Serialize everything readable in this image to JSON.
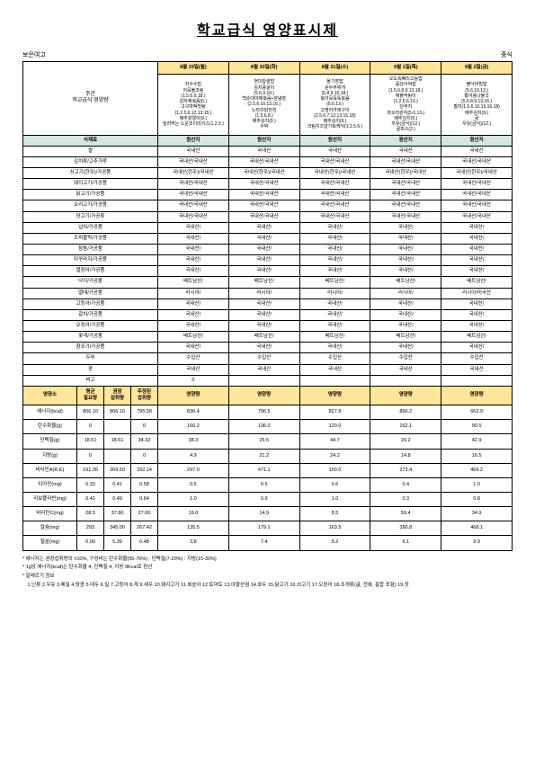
{
  "title": "학교급식 영양표시제",
  "header_left": "보은여고",
  "header_right": "중식",
  "week_label": "주간\n학교급식 영양량",
  "dates": [
    "8월 29일(월)",
    "8월 30일(화)",
    "8월 31일(수)",
    "9월 1일(목)",
    "9월 2일(금)"
  ],
  "menus": [
    "차수수밥\n어묵불조림\n(1.5.6.9.18.)\n감자채볶음(5.)\n고구마떡맛탕\n(1.2.5.6.12.13.15.)\n배추겉절이(9.)\n밀러먹는 노운조이미이스(1.2.5.)",
    "현미찹쌀밥\n김치콩굴이\n(5.6.9.10.)\n백순대야채볶음+양념장(2.5.6.10.13.16.)\n노타리닭전전\n(1.5.6.8.)\n배추김치(9.)\n수박",
    "올기장밥\n순두부찌개\n(5.8.9.10.18.)\n볶이묵뚝뚝볶음\n(5.6.13.)\n고명어카레구이(2.5.6.7.12.13.16.18)\n배추김치(9.)\n크림치즈알가토케익(1.2.5.6.)",
    "오도독뼈리고등밥\n꼼강어덕밥\n(1.5.6.8.9.13.18.)\n애플막탕이\n(1.2.5.6.13.)\n단무지\n파오리관자(5.6.13.)\n배추김치(9.)\n우유(금식)(12.)\n골피스(2.)",
    "볼낙비빔밥\n(5.6.10.13.)\n황어용나물국\n(5.6.8.9.13.16.)\n황미(1.5.6.10.15.16.18)\n배추김치(9.)\n굴\n우유(금식)(12.)"
  ],
  "ing_label": "식재료",
  "origin_label": "원산지",
  "ingredients": [
    {
      "n": "쌀",
      "o": [
        "국내산",
        "국내산",
        "국내산",
        "국내산",
        "국내산"
      ]
    },
    {
      "n": "김치류/고추가루",
      "o": [
        "국내산/국내산",
        "국내산/국내산",
        "국내산/국내산",
        "국내산/국내산",
        "국내산/국내산"
      ]
    },
    {
      "n": "쇠고기(한우)/가공품",
      "o": [
        "국내산(한우)/국내산",
        "국내산(한우)/국내산",
        "국내산(한우)/국내산",
        "국내산(한우)/국내산",
        "국내산(한우)/국내산"
      ]
    },
    {
      "n": "돼지고기/가공품",
      "o": [
        "국내산/국내산",
        "국내산/국내산",
        "국내산/국내산",
        "국내산/국내산",
        "국내산/국내산"
      ]
    },
    {
      "n": "닭고기/가공품",
      "o": [
        "국내산/국내산",
        "국내산/국내산",
        "국내산/국내산",
        "국내산/국내산",
        "국내산/국내산"
      ]
    },
    {
      "n": "오리고기/가공품",
      "o": [
        "국내산/국내산",
        "국내산/국내산",
        "국내산/국내산",
        "국내산/국내산",
        "국내산/국내산"
      ]
    },
    {
      "n": "양고기/가공류",
      "o": [
        "국내산/국내산",
        "국내산/국내산",
        "국내산/국내산",
        "국내산/국내산",
        "국내산/국내산"
      ]
    },
    {
      "n": "넙치/가공품",
      "o": [
        "국내산/",
        "국내산/",
        "국내산/",
        "국내산/",
        "국내산/"
      ]
    },
    {
      "n": "조피볼락/가공품",
      "o": [
        "국내산/",
        "국내산/",
        "국내산/",
        "국내산/",
        "국내산/"
      ]
    },
    {
      "n": "참돔/가공품",
      "o": [
        "국내산/",
        "국내산/",
        "국내산/",
        "국내산/",
        "국내산/"
      ]
    },
    {
      "n": "미꾸라지/가공품",
      "o": [
        "국내산/",
        "국내산/",
        "국내산/",
        "국내산/",
        "국내산/"
      ]
    },
    {
      "n": "멸장어/가공품",
      "o": [
        "국내산/",
        "국내산/",
        "국내산/",
        "국내산/",
        "국내산/"
      ]
    },
    {
      "n": "낙지/가공품",
      "o": [
        "베트남산/",
        "베트남산/",
        "베트남산/",
        "베트남산/",
        "베트남산/"
      ]
    },
    {
      "n": "멸태/가공품",
      "o": [
        "러시아/",
        "러시아/",
        "러시아/",
        "러시아/",
        "러시아/미국산"
      ]
    },
    {
      "n": "고등어/가공품",
      "o": [
        "국내산/",
        "국내산/",
        "국내산/",
        "국내산/",
        "국내산/"
      ]
    },
    {
      "n": "갈치/가공품",
      "o": [
        "국내산/",
        "국내산/",
        "국내산/",
        "국내산/",
        "국내산/"
      ]
    },
    {
      "n": "오징어/가공품",
      "o": [
        "국내산/",
        "국내산/",
        "국내산/",
        "국내산/",
        "국내산/"
      ]
    },
    {
      "n": "꽃게/가공품",
      "o": [
        "베트남산/",
        "베트남산/",
        "베트남산/",
        "베트남산/",
        "베트남산/"
      ]
    },
    {
      "n": "참조기/가공품",
      "o": [
        "국내산/",
        "국내산/",
        "국내산/",
        "국내산/",
        "국내산/"
      ]
    },
    {
      "n": "두부",
      "o": [
        "수입산",
        "수입산",
        "수입산",
        "수입산",
        "수입산"
      ]
    },
    {
      "n": "콩",
      "o": [
        "국내산",
        "국내산",
        "국내산",
        "국내산",
        "국내산"
      ]
    },
    {
      "n": "비고",
      "o": [
        "0",
        "",
        "",
        "",
        ""
      ]
    }
  ],
  "nutr_col_labels": [
    "영양소",
    "평균\n필요량",
    "권장\n섭취량",
    "추정된\n섭취량",
    "영양량",
    "영양량",
    "영양량",
    "영양량",
    "영양량"
  ],
  "nutrients": [
    {
      "n": "에너지(kcal)",
      "v": [
        "806.10",
        "806.10",
        "795.58",
        "830.4",
        "796.5",
        "827.8",
        "860.2",
        "662.9"
      ]
    },
    {
      "n": "탄수화물(g)",
      "v": [
        "0",
        "",
        "0",
        "160.2",
        "136.0",
        "120.0",
        "162.1",
        "90.5"
      ]
    },
    {
      "n": "단백질(g)",
      "v": [
        "18.61",
        "18.61",
        "34.32",
        "38.3",
        "25.5",
        "44.7",
        "20.2",
        "42.9"
      ]
    },
    {
      "n": "지방(g)",
      "v": [
        "0",
        "",
        "0",
        "4.9",
        "21.2",
        "24.2",
        "14.8",
        "16.5"
      ]
    },
    {
      "n": "비타민A(R.E)",
      "v": [
        "191.35",
        "269.50",
        "332.14",
        "297.0",
        "471.1",
        "150.0",
        "273.4",
        "469.2"
      ]
    },
    {
      "n": "티아민(mg)",
      "v": [
        "0.33",
        "0.41",
        "0.58",
        "0.5",
        "0.5",
        "0.6",
        "0.4",
        "1.0"
      ]
    },
    {
      "n": "리보플라빈(mg)",
      "v": [
        "0.41",
        "0.49",
        "0.64",
        "1.0",
        "0.9",
        "1.0",
        "0.3",
        "0.8"
      ]
    },
    {
      "n": "비타민C(mg)",
      "v": [
        "28.5",
        "37.80",
        "27.00",
        "16.0",
        "14.9",
        "8.5",
        "59.4",
        "34.9"
      ]
    },
    {
      "n": "칼슘(mg)",
      "v": [
        "293",
        "345.00",
        "267.42",
        "135.5",
        "179.1",
        "163.5",
        "390.8",
        "468.1"
      ]
    },
    {
      "n": "철분(mg)",
      "v": [
        "0.00",
        "5.39",
        "6.48",
        "3.8",
        "7.4",
        "5.2",
        "6.1",
        "9.9"
      ]
    }
  ],
  "footer1": "* 에너지는 권장섭취량의 ±10%, 구성비는 탄수화물(55-70%) : 단백질(7-20%) : 지방(15-30%)",
  "footer2": "* 1g당 에너지(kcal)는 탄수화물 4, 단백질 4, 지방 9Kcal로 환산",
  "footer3": "* 알레르기 정보",
  "footer4": "　1.난류 2.우유 3.메밀 4.땅콩 5.대두 6.밀 7.고등어 8.게 9.새우 10.돼지고기 11.복숭아 12.토마토 13.아황산염 14.호두 15.닭고기 16.쇠고기 17.오징어 18.조개류(굴, 전복, 홍합 포함) 19.잣"
}
